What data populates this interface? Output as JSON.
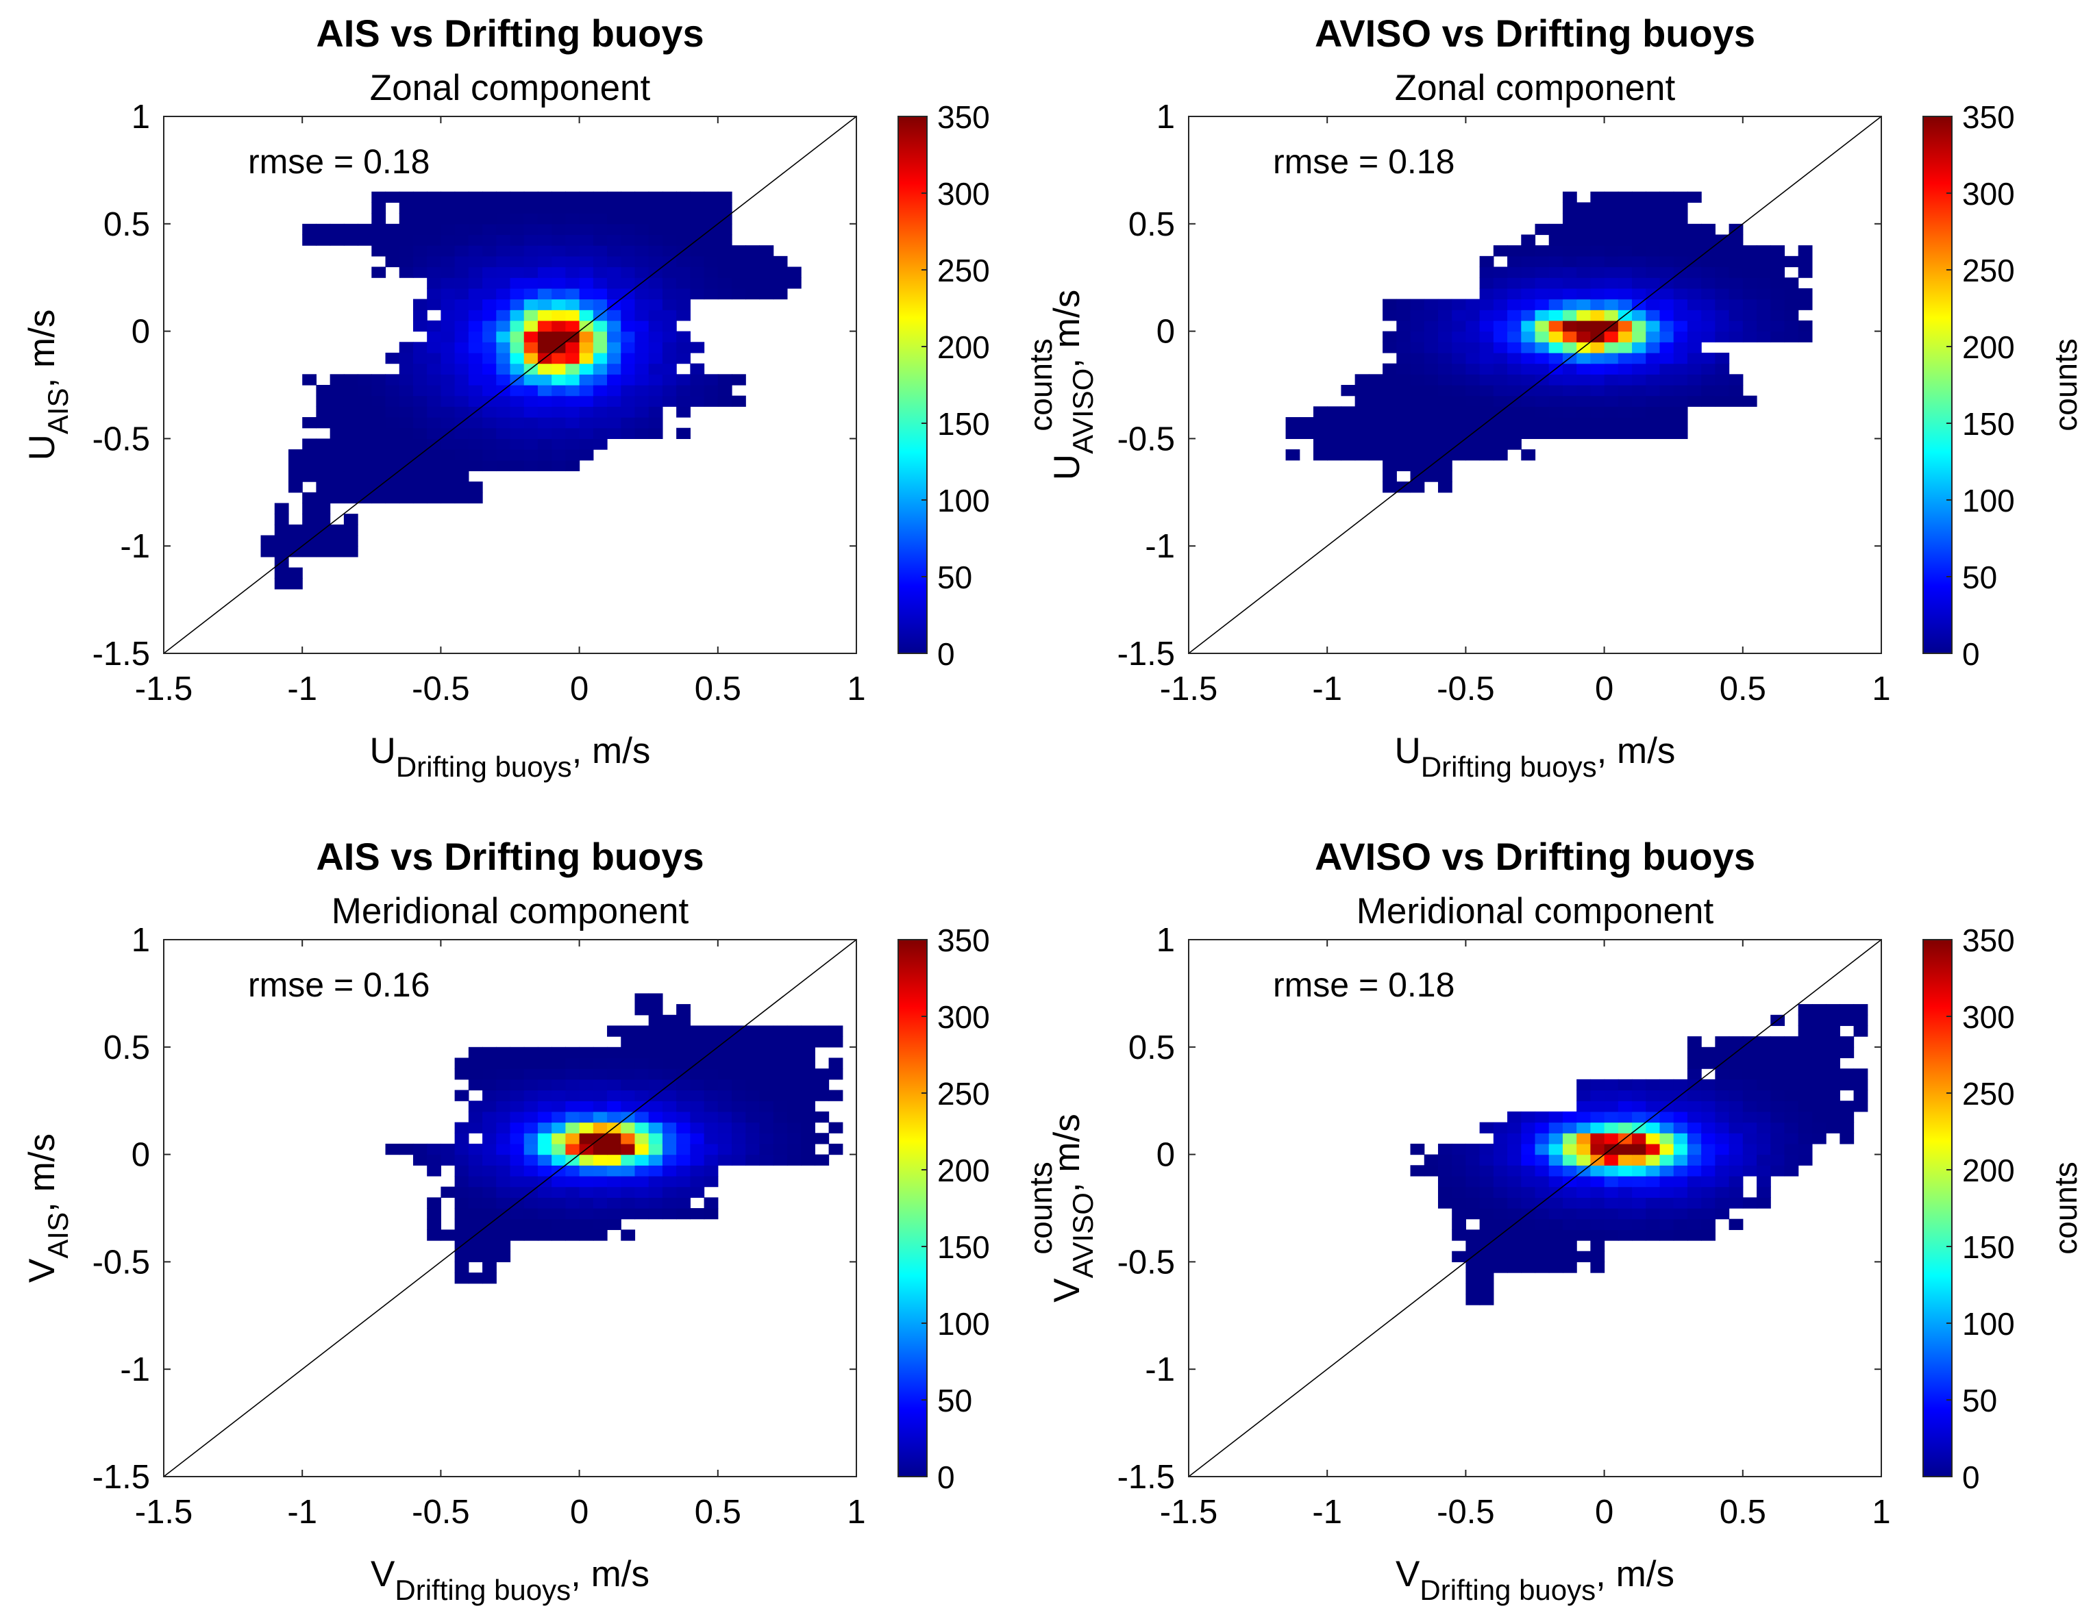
{
  "figure": {
    "colorbar": {
      "label": "counts",
      "ticks": [
        0,
        50,
        100,
        150,
        200,
        250,
        300,
        350
      ],
      "limits": [
        0,
        350
      ],
      "colormap": "jet"
    },
    "x_ticks": [
      "-1.5",
      "-1",
      "-0.5",
      "0",
      "0.5",
      "1"
    ],
    "y_ticks": [
      "1",
      "0.5",
      "0",
      "-0.5",
      "-1",
      "-1.5"
    ]
  },
  "chart_data": [
    {
      "type": "heatmap",
      "title": "AIS vs Drifting buoys",
      "subtitle": "Zonal component",
      "annotation": "rmse = 0.18",
      "xlabel": {
        "main": "U",
        "sub": "Drifting buoys",
        "unit": ", m/s"
      },
      "ylabel": {
        "main": "U",
        "sub": "AIS",
        "unit": ", m/s"
      },
      "xlim": [
        -1.5,
        1
      ],
      "ylim": [
        -1.5,
        1
      ],
      "bin_size": 0.05,
      "one_to_one_line": true,
      "regions": [
        {
          "cx": -0.08,
          "cy": -0.05,
          "sx": 0.1,
          "sy": 0.1,
          "a": 360
        },
        {
          "cx": -0.1,
          "cy": -0.05,
          "sx": 0.3,
          "sy": 0.25,
          "a": 60
        }
      ],
      "extents": [
        [
          0.55,
          -0.75,
          0.55
        ],
        [
          0.45,
          -1.05,
          0.55
        ],
        [
          0.35,
          -0.75,
          0.8
        ],
        [
          0.2,
          -0.55,
          0.8
        ],
        [
          0.05,
          -0.6,
          0.45
        ],
        [
          -0.1,
          -0.7,
          0.45
        ],
        [
          -0.25,
          -1.0,
          0.6
        ],
        [
          -0.4,
          -1.0,
          0.4
        ],
        [
          -0.55,
          -1.05,
          0.1
        ],
        [
          -0.7,
          -1.05,
          -0.35
        ],
        [
          -0.85,
          -1.1,
          -0.8
        ],
        [
          -1.0,
          -1.15,
          -0.8
        ],
        [
          -1.1,
          -1.1,
          -1.0
        ]
      ]
    },
    {
      "type": "heatmap",
      "title": "AVISO vs Drifting buoys",
      "subtitle": "Zonal component",
      "annotation": "rmse = 0.18",
      "xlabel": {
        "main": "U",
        "sub": "Drifting buoys",
        "unit": ", m/s"
      },
      "ylabel": {
        "main": "U",
        "sub": "AVISO",
        "unit": ", m/s"
      },
      "xlim": [
        -1.5,
        1
      ],
      "ylim": [
        -1.5,
        1
      ],
      "bin_size": 0.05,
      "one_to_one_line": true,
      "regions": [
        {
          "cx": -0.05,
          "cy": 0.0,
          "sx": 0.12,
          "sy": 0.06,
          "a": 360
        },
        {
          "cx": -0.05,
          "cy": 0.0,
          "sx": 0.32,
          "sy": 0.16,
          "a": 60
        }
      ],
      "extents": [
        [
          0.55,
          -0.15,
          0.35
        ],
        [
          0.45,
          -0.3,
          0.5
        ],
        [
          0.35,
          -0.45,
          0.75
        ],
        [
          0.2,
          -0.55,
          0.75
        ],
        [
          0.05,
          -0.8,
          0.75
        ],
        [
          -0.1,
          -0.85,
          0.45
        ],
        [
          -0.25,
          -0.95,
          0.55
        ],
        [
          -0.4,
          -1.15,
          0.3
        ],
        [
          -0.55,
          -1.15,
          -0.25
        ],
        [
          -0.65,
          -0.8,
          -0.55
        ]
      ]
    },
    {
      "type": "heatmap",
      "title": "AIS vs Drifting buoys",
      "subtitle": "Meridional component",
      "annotation": "rmse = 0.16",
      "xlabel": {
        "main": "V",
        "sub": "Drifting buoys",
        "unit": ", m/s"
      },
      "ylabel": {
        "main": "V",
        "sub": "AIS",
        "unit": ", m/s"
      },
      "xlim": [
        -1.5,
        1
      ],
      "ylim": [
        -1.5,
        1
      ],
      "bin_size": 0.05,
      "one_to_one_line": true,
      "regions": [
        {
          "cx": 0.08,
          "cy": 0.05,
          "sx": 0.12,
          "sy": 0.06,
          "a": 360
        },
        {
          "cx": 0.08,
          "cy": 0.05,
          "sx": 0.3,
          "sy": 0.16,
          "a": 60
        }
      ],
      "extents": [
        [
          0.65,
          0.2,
          0.4
        ],
        [
          0.55,
          0.1,
          0.95
        ],
        [
          0.45,
          -0.45,
          0.95
        ],
        [
          0.3,
          -0.45,
          0.95
        ],
        [
          0.15,
          -0.45,
          0.95
        ],
        [
          0.0,
          -0.7,
          0.95
        ],
        [
          -0.1,
          -0.55,
          0.5
        ],
        [
          -0.2,
          -0.55,
          0.5
        ],
        [
          -0.35,
          -0.55,
          0.2
        ],
        [
          -0.5,
          -0.45,
          -0.25
        ]
      ]
    },
    {
      "type": "heatmap",
      "title": "AVISO vs Drifting buoys",
      "subtitle": "Meridional component",
      "annotation": "rmse = 0.18",
      "xlabel": {
        "main": "V",
        "sub": "Drifting buoys",
        "unit": ", m/s"
      },
      "ylabel": {
        "main": "V",
        "sub": "AVISO",
        "unit": ", m/s"
      },
      "xlim": [
        -1.5,
        1
      ],
      "ylim": [
        -1.5,
        1
      ],
      "bin_size": 0.05,
      "one_to_one_line": true,
      "regions": [
        {
          "cx": 0.05,
          "cy": 0.03,
          "sx": 0.13,
          "sy": 0.06,
          "a": 360
        },
        {
          "cx": 0.08,
          "cy": 0.03,
          "sx": 0.3,
          "sy": 0.17,
          "a": 60
        }
      ],
      "extents": [
        [
          0.6,
          0.6,
          0.95
        ],
        [
          0.45,
          0.3,
          0.95
        ],
        [
          0.3,
          -0.1,
          0.95
        ],
        [
          0.15,
          -0.45,
          0.9
        ],
        [
          0.0,
          -0.7,
          0.75
        ],
        [
          -0.15,
          -0.6,
          0.6
        ],
        [
          -0.3,
          -0.55,
          0.5
        ],
        [
          -0.45,
          -0.55,
          0.0
        ],
        [
          -0.6,
          -0.5,
          -0.4
        ]
      ]
    }
  ]
}
